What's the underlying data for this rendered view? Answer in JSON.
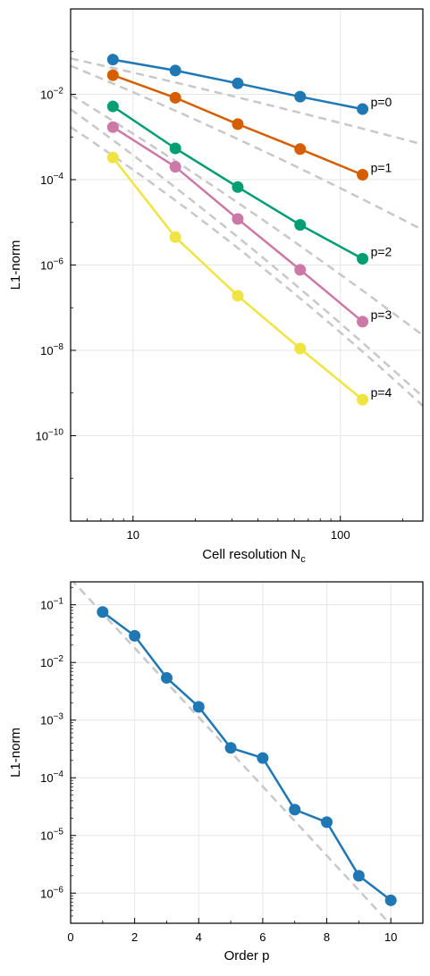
{
  "chart_data": [
    {
      "type": "line",
      "xscale": "log",
      "yscale": "log",
      "xlabel": "Cell resolution N",
      "xlabel_sub": "c",
      "ylabel": "L1-norm",
      "xlim": [
        5,
        250
      ],
      "ylim": [
        1e-12,
        1
      ],
      "x_ticks": [
        10,
        100
      ],
      "y_ticks": [
        -2,
        -4,
        -6,
        -8,
        -10
      ],
      "grid": true,
      "legend": "none",
      "series": [
        {
          "name": "p=0",
          "color": "#1f77b4",
          "x": [
            8,
            16,
            32,
            64,
            128
          ],
          "y": [
            0.065,
            0.036,
            0.018,
            0.0088,
            0.0045
          ]
        },
        {
          "name": "p=1",
          "color": "#d55e00",
          "x": [
            8,
            16,
            32,
            64,
            128
          ],
          "y": [
            0.028,
            0.0083,
            0.002,
            0.00052,
            0.00013
          ]
        },
        {
          "name": "p=2",
          "color": "#009e73",
          "x": [
            8,
            16,
            32,
            64,
            128
          ],
          "y": [
            0.0052,
            0.00054,
            6.7e-05,
            8.7e-06,
            1.4e-06
          ]
        },
        {
          "name": "p=3",
          "color": "#cc79a7",
          "x": [
            8,
            16,
            32,
            64,
            128
          ],
          "y": [
            0.0017,
            0.0002,
            1.2e-05,
            7.7e-07,
            4.7e-08
          ]
        },
        {
          "name": "p=4",
          "color": "#f0e442",
          "x": [
            8,
            16,
            32,
            64,
            128
          ],
          "y": [
            0.00033,
            4.5e-06,
            1.9e-07,
            1.1e-08,
            7e-10
          ]
        }
      ],
      "reference_lines": [
        {
          "y_at_x1": 0.37,
          "slope": -1,
          "curvature": -0.06
        },
        {
          "y_at_x1": 1.0,
          "slope": -1.8,
          "curvature": -0.15
        },
        {
          "y_at_x1": 0.95,
          "slope": -2.7,
          "curvature": -0.2
        },
        {
          "y_at_x1": 0.9,
          "slope": -3.1,
          "curvature": -0.28
        },
        {
          "y_at_x1": 0.2,
          "slope": -2.7,
          "curvature": -0.37
        }
      ]
    },
    {
      "type": "line",
      "yscale": "log",
      "xlabel": "Order p",
      "ylabel": "L1-norm",
      "xlim": [
        0,
        11
      ],
      "ylim": [
        3e-07,
        0.25
      ],
      "x_ticks": [
        0,
        2,
        4,
        6,
        8,
        10
      ],
      "y_ticks": [
        -1,
        -2,
        -3,
        -4,
        -5,
        -6
      ],
      "grid": true,
      "legend": "none",
      "series": [
        {
          "name": "",
          "color": "#1f77b4",
          "x": [
            1,
            2,
            3,
            4,
            5,
            6,
            7,
            8,
            9,
            10
          ],
          "y": [
            0.075,
            0.029,
            0.0054,
            0.0017,
            0.00033,
            0.00022,
            2.8e-05,
            1.7e-05,
            2e-06,
            7.5e-07
          ]
        }
      ],
      "reference_lines": [
        {
          "log10_y_at_x0": -0.55,
          "slope": -0.6
        }
      ]
    }
  ]
}
